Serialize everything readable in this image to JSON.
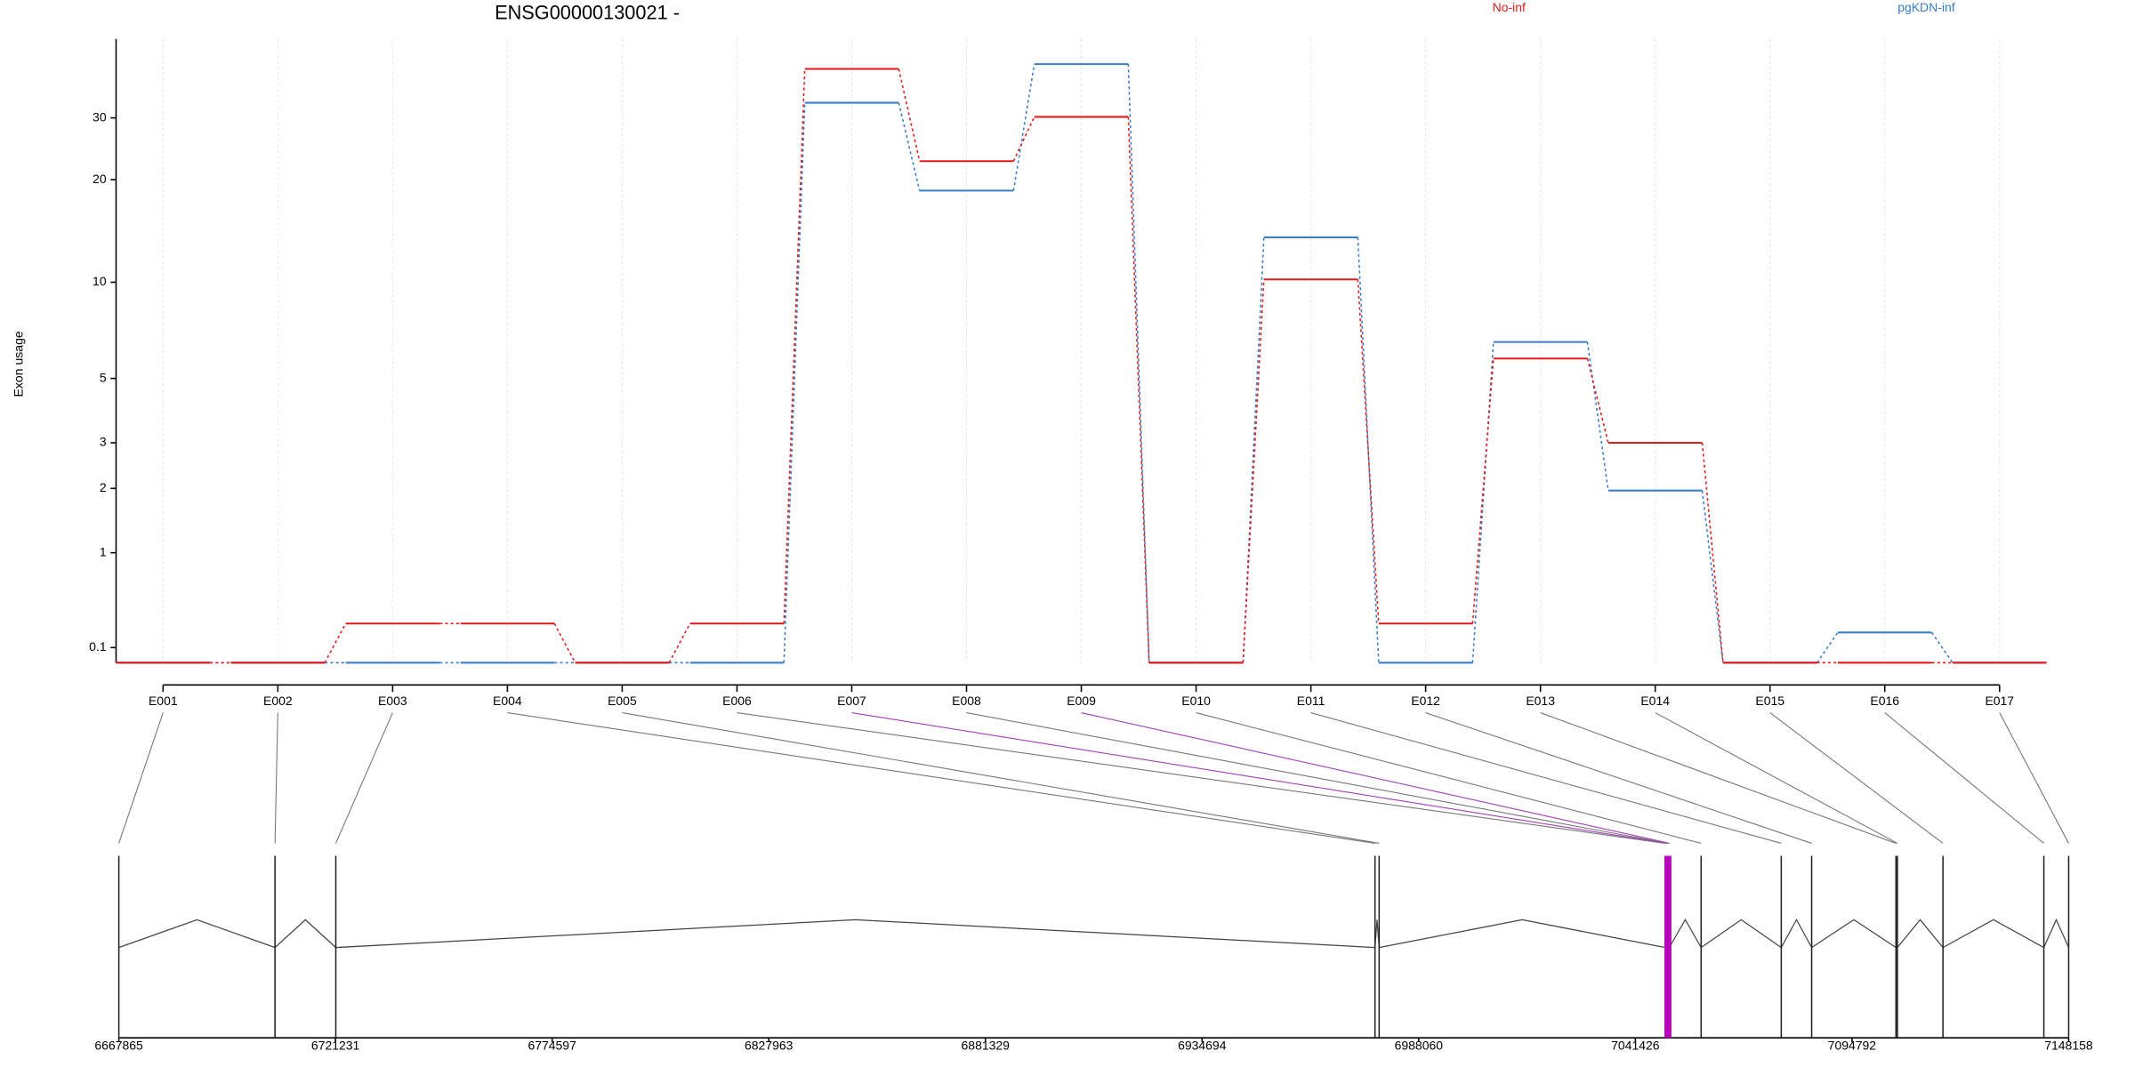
{
  "chart_data": {
    "type": "line",
    "title": "ENSG00000130021 -",
    "ylabel": "Exon usage",
    "categories": [
      "E001",
      "E002",
      "E003",
      "E004",
      "E005",
      "E006",
      "E007",
      "E008",
      "E009",
      "E010",
      "E011",
      "E012",
      "E013",
      "E014",
      "E015",
      "E016",
      "E017"
    ],
    "series": [
      {
        "name": "No-inf",
        "color": "#e31a1c",
        "values": [
          0,
          0,
          0.28,
          0.28,
          0,
          0.28,
          41.2,
          22.6,
          30.2,
          0,
          10.2,
          0.28,
          5.8,
          3.0,
          0,
          0,
          0
        ]
      },
      {
        "name": "pgKDN-inf",
        "color": "#3a7dc9",
        "values": [
          0,
          0,
          0,
          0,
          0,
          0,
          33.1,
          18.6,
          42.5,
          0,
          13.6,
          0,
          6.55,
          1.96,
          0,
          0.21,
          0
        ]
      }
    ],
    "ylim": [
      0,
      50
    ],
    "yticks": [
      0.1,
      1,
      2,
      3,
      5,
      10,
      20,
      30
    ],
    "yscale": "log1p",
    "grid": true,
    "legend": "top",
    "gene_model": {
      "xlim": [
        6667865,
        7148158
      ],
      "xticks": [
        6667865,
        6721231,
        6774597,
        6827963,
        6881329,
        6934694,
        6988060,
        7041426,
        7094792,
        7148158
      ],
      "exon_starts": [
        6667865,
        6706330,
        6721308,
        6977289,
        6978310,
        7048773,
        7049113,
        7049454,
        7049794,
        7057623,
        7077366,
        7084854,
        7105619,
        7105959,
        7117193,
        7142042,
        7148158
      ],
      "significant": [
        false,
        false,
        false,
        false,
        false,
        false,
        true,
        false,
        true,
        false,
        false,
        false,
        false,
        false,
        false,
        false,
        false
      ]
    }
  }
}
